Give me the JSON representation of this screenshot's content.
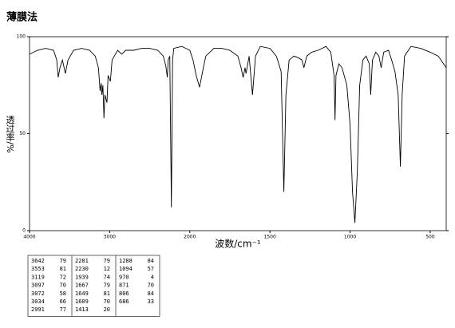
{
  "chart_data": {
    "type": "line",
    "title": "薄膜法",
    "x_label": "波数/cm⁻¹",
    "y_label": "透过率/%",
    "color": "#000000",
    "xlim": [
      4000,
      400
    ],
    "xticks": [
      4000,
      3000,
      2000,
      1500,
      1000,
      500
    ],
    "ylim": [
      0,
      100
    ],
    "yticks": [
      0,
      50,
      100
    ],
    "x": [
      4000,
      3900,
      3800,
      3700,
      3660,
      3642,
      3620,
      3590,
      3553,
      3520,
      3450,
      3350,
      3250,
      3180,
      3140,
      3119,
      3105,
      3097,
      3085,
      3072,
      3060,
      3034,
      3020,
      2991,
      2970,
      2900,
      2850,
      2800,
      2700,
      2600,
      2500,
      2400,
      2330,
      2300,
      2281,
      2270,
      2250,
      2230,
      2215,
      2200,
      2100,
      2050,
      2000,
      1980,
      1960,
      1939,
      1920,
      1900,
      1850,
      1800,
      1750,
      1700,
      1680,
      1667,
      1655,
      1649,
      1630,
      1609,
      1590,
      1560,
      1500,
      1460,
      1430,
      1413,
      1400,
      1380,
      1350,
      1320,
      1300,
      1288,
      1270,
      1240,
      1200,
      1150,
      1120,
      1100,
      1094,
      1088,
      1070,
      1050,
      1020,
      1000,
      985,
      970,
      955,
      940,
      920,
      900,
      880,
      871,
      860,
      840,
      820,
      806,
      790,
      760,
      740,
      720,
      700,
      686,
      675,
      660,
      620,
      560,
      500,
      450,
      400
    ],
    "values": [
      91,
      93,
      94,
      93,
      88,
      79,
      84,
      88,
      81,
      88,
      93,
      94,
      93,
      90,
      84,
      72,
      76,
      70,
      75,
      58,
      70,
      66,
      80,
      77,
      88,
      93,
      91,
      93,
      93,
      94,
      94,
      93,
      90,
      85,
      79,
      88,
      90,
      12,
      88,
      94,
      95,
      94,
      93,
      88,
      80,
      74,
      82,
      90,
      94,
      94,
      93,
      90,
      84,
      79,
      84,
      81,
      90,
      70,
      90,
      95,
      94,
      90,
      82,
      20,
      70,
      88,
      90,
      89,
      88,
      84,
      90,
      92,
      93,
      95,
      92,
      80,
      57,
      80,
      86,
      84,
      75,
      55,
      20,
      4,
      30,
      75,
      88,
      90,
      86,
      70,
      88,
      92,
      90,
      84,
      92,
      93,
      88,
      82,
      70,
      33,
      70,
      90,
      95,
      94,
      92,
      90,
      84
    ]
  },
  "peak_table": [
    [
      [
        3642,
        79
      ],
      [
        3553,
        81
      ],
      [
        3119,
        72
      ],
      [
        3097,
        70
      ],
      [
        3072,
        58
      ],
      [
        3034,
        66
      ],
      [
        2991,
        77
      ]
    ],
    [
      [
        2281,
        79
      ],
      [
        2230,
        12
      ],
      [
        1939,
        74
      ],
      [
        1667,
        79
      ],
      [
        1649,
        81
      ],
      [
        1609,
        70
      ],
      [
        1413,
        20
      ]
    ],
    [
      [
        1288,
        84
      ],
      [
        1094,
        57
      ],
      [
        970,
        4
      ],
      [
        871,
        70
      ],
      [
        806,
        84
      ],
      [
        686,
        33
      ]
    ]
  ]
}
